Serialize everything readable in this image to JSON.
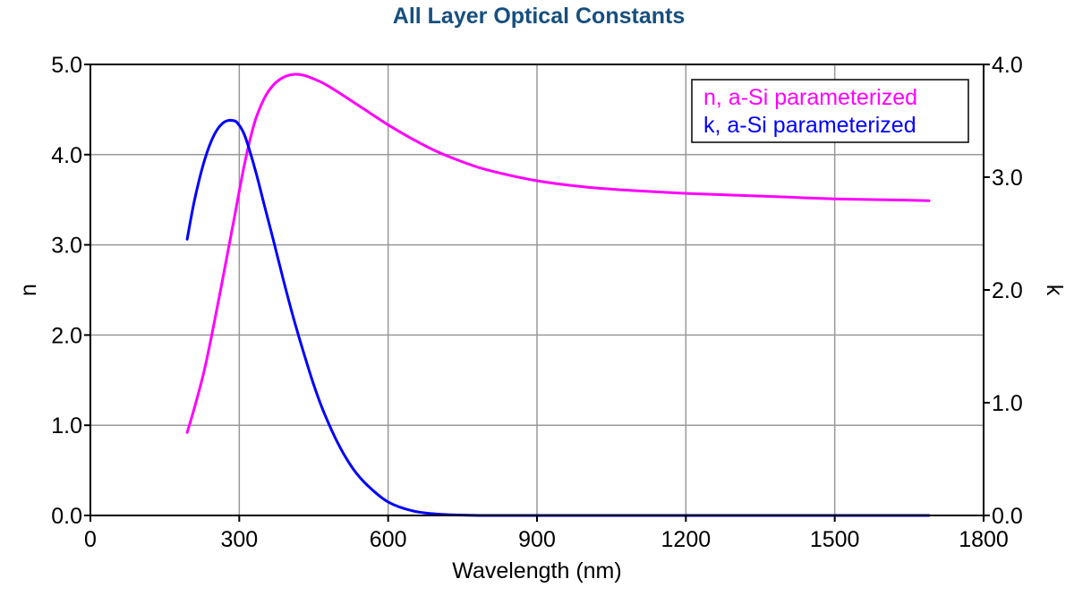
{
  "chart_data": {
    "type": "line",
    "title": "All Layer Optical Constants",
    "xlabel": "Wavelength (nm)",
    "ylabel_left": "n",
    "ylabel_right": "k",
    "xlim": [
      0,
      1800
    ],
    "ylim_left": [
      0,
      5
    ],
    "ylim_right": [
      0,
      4
    ],
    "x_ticks": [
      "0",
      "300",
      "600",
      "900",
      "1200",
      "1500",
      "1800"
    ],
    "y_ticks_left": [
      "0.0",
      "1.0",
      "2.0",
      "3.0",
      "4.0",
      "5.0"
    ],
    "y_ticks_right": [
      "0.0",
      "1.0",
      "2.0",
      "3.0",
      "4.0"
    ],
    "grid": true,
    "legend_position": "top-right",
    "series": [
      {
        "name": "n, a-Si parameterized",
        "axis": "left",
        "color": "#ff00ff",
        "x": [
          195,
          210,
          230,
          250,
          270,
          290,
          310,
          330,
          350,
          370,
          390,
          410,
          430,
          450,
          470,
          500,
          550,
          600,
          650,
          700,
          750,
          800,
          900,
          1000,
          1100,
          1200,
          1300,
          1400,
          1500,
          1600,
          1690
        ],
        "y": [
          0.92,
          1.2,
          1.62,
          2.15,
          2.72,
          3.3,
          3.88,
          4.34,
          4.62,
          4.78,
          4.86,
          4.89,
          4.88,
          4.84,
          4.79,
          4.69,
          4.51,
          4.33,
          4.17,
          4.03,
          3.92,
          3.83,
          3.71,
          3.64,
          3.6,
          3.57,
          3.55,
          3.53,
          3.51,
          3.5,
          3.49
        ]
      },
      {
        "name": "k, a-Si parameterized",
        "axis": "right",
        "color": "#0000ff",
        "x": [
          195,
          210,
          230,
          250,
          270,
          290,
          300,
          310,
          320,
          335,
          350,
          370,
          390,
          410,
          430,
          450,
          470,
          500,
          530,
          560,
          600,
          650,
          700,
          750,
          800,
          900,
          1000,
          1200,
          1400,
          1600,
          1690
        ],
        "y": [
          2.45,
          2.8,
          3.15,
          3.38,
          3.49,
          3.5,
          3.46,
          3.38,
          3.25,
          3.02,
          2.76,
          2.42,
          2.07,
          1.74,
          1.44,
          1.16,
          0.92,
          0.63,
          0.41,
          0.26,
          0.12,
          0.04,
          0.012,
          0.003,
          0.0,
          0.0,
          0.0,
          0.0,
          0.0,
          0.0,
          0.0
        ]
      }
    ]
  }
}
